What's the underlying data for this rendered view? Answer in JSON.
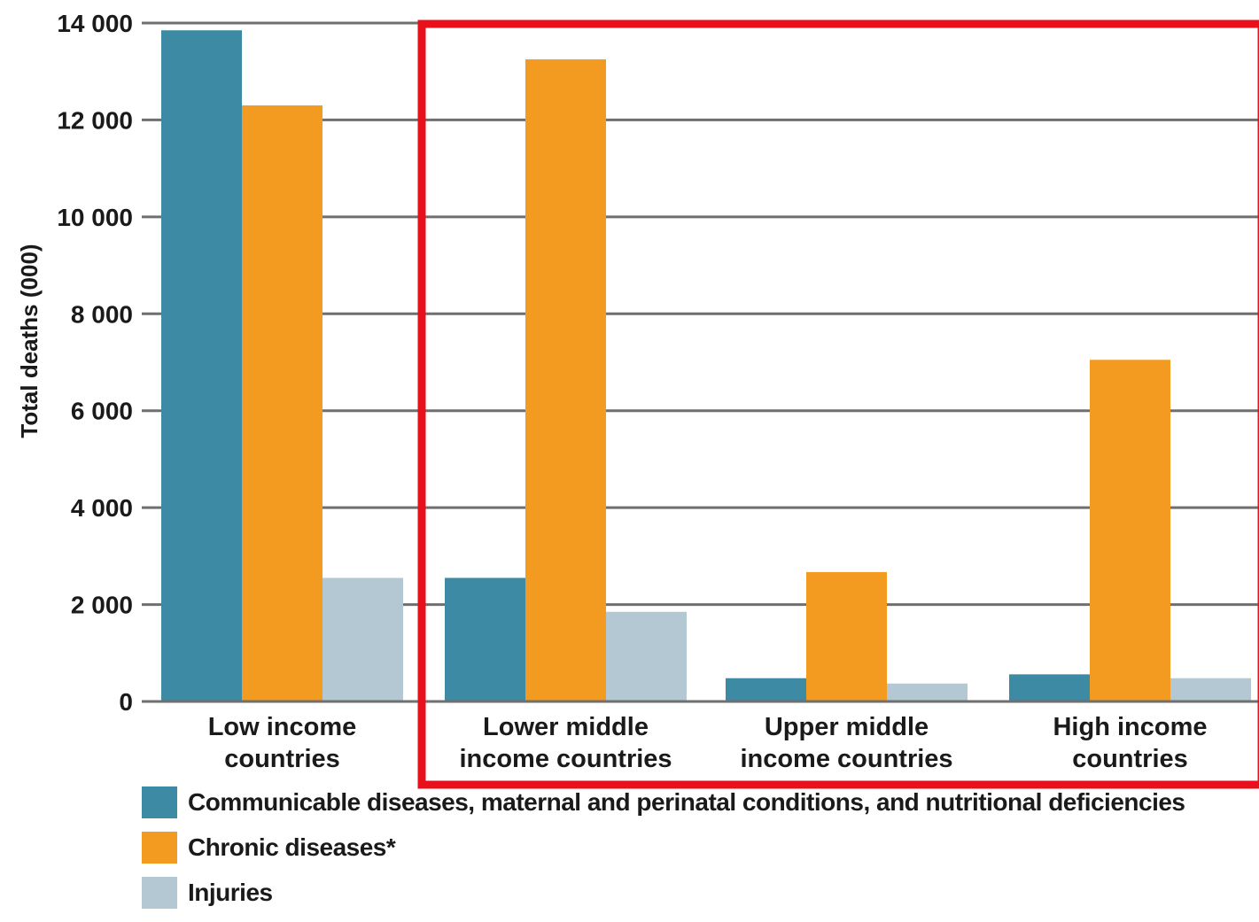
{
  "chart_data": {
    "type": "bar",
    "ylabel": "Total deaths (000)",
    "ylim": [
      0,
      14000
    ],
    "yticks": [
      0,
      2000,
      4000,
      6000,
      8000,
      10000,
      12000,
      14000
    ],
    "ytick_labels": [
      "0",
      "2 000",
      "4 000",
      "6 000",
      "8 000",
      "10 000",
      "12 000",
      "14 000"
    ],
    "grid": true,
    "categories": [
      [
        "Low income",
        "countries"
      ],
      [
        "Lower middle",
        "income countries"
      ],
      [
        "Upper middle",
        "income countries"
      ],
      [
        "High income",
        "countries"
      ]
    ],
    "series": [
      {
        "name": "Communicable diseases, maternal and perinatal conditions, and nutritional deficiencies",
        "color": "#3c8aa3",
        "values": [
          13850,
          2550,
          480,
          560
        ]
      },
      {
        "name": "Chronic diseases*",
        "color": "#f39a21",
        "values": [
          12300,
          13250,
          2670,
          7050
        ]
      },
      {
        "name": "Injuries",
        "color": "#b3c8d2",
        "values": [
          2550,
          1850,
          370,
          480
        ]
      }
    ],
    "highlight": {
      "color": "#e8101a",
      "categories": [
        1,
        2,
        3
      ]
    },
    "legend_position": "bottom-left"
  }
}
